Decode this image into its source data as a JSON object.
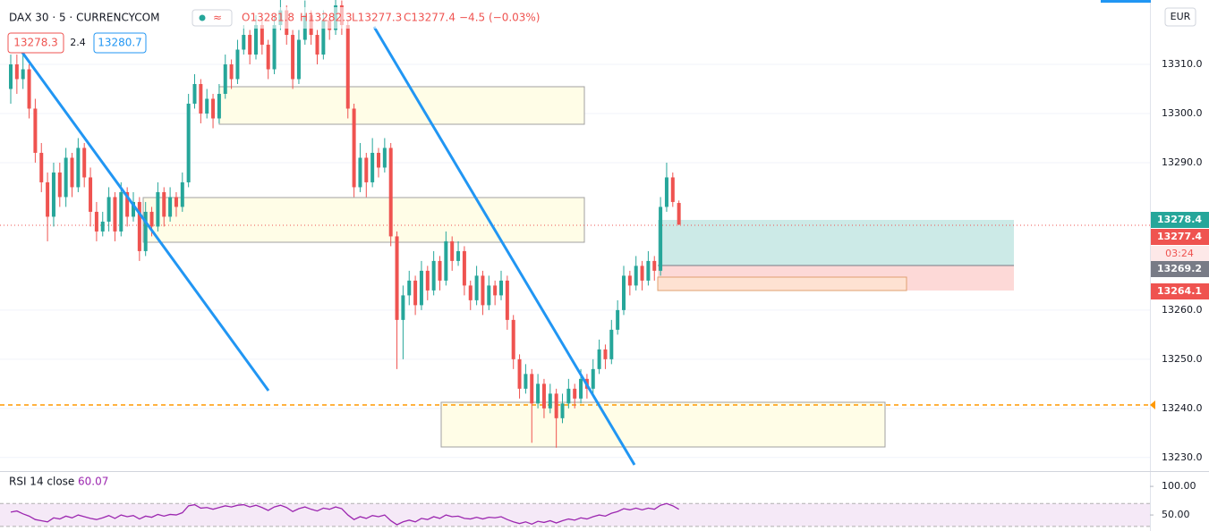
{
  "chart_data": {
    "type": "candlestick",
    "legend": {
      "symbol": "DAX 30 · 5 · CURRENCYCOM",
      "ohlc": [
        "O13281.8",
        "H13282.3",
        "L13277.3",
        "C13277.4"
      ],
      "change": "−4.5 (−0.03%)"
    },
    "inputs": [
      "13278.3",
      "2.4",
      "13280.7"
    ],
    "currency": "EUR",
    "axis_labels": [
      "13278.4",
      "13277.4",
      "03:24",
      "13269.2",
      "13264.1"
    ],
    "ylim": [
      13227.6,
      13323.1
    ],
    "yticks": [
      {
        "value": 13230,
        "label": "13230.0"
      },
      {
        "value": 13240,
        "label": "13240.0"
      },
      {
        "value": 13250,
        "label": "13250.0"
      },
      {
        "value": 13260,
        "label": "13260.0"
      },
      {
        "value": 13290,
        "label": "13290.0"
      },
      {
        "value": 13300,
        "label": "13300.0"
      },
      {
        "value": 13310,
        "label": "13310.0"
      }
    ],
    "up_color": "#26a69a",
    "down_color": "#ef5350",
    "candles": [
      [
        13305,
        13312,
        13302,
        13310
      ],
      [
        13310,
        13312,
        13304,
        13307
      ],
      [
        13307,
        13313,
        13305,
        13309
      ],
      [
        13309,
        13310,
        13299,
        13301
      ],
      [
        13301,
        13303,
        13290,
        13292
      ],
      [
        13292,
        13294,
        13284,
        13286
      ],
      [
        13286,
        13288,
        13274,
        13279
      ],
      [
        13279,
        13290,
        13277,
        13288
      ],
      [
        13288,
        13290,
        13281,
        13283
      ],
      [
        13283,
        13293,
        13281,
        13291
      ],
      [
        13291,
        13292,
        13283,
        13285
      ],
      [
        13285,
        13295,
        13284,
        13293
      ],
      [
        13293,
        13294,
        13285,
        13287
      ],
      [
        13287,
        13289,
        13277,
        13280
      ],
      [
        13280,
        13282,
        13274,
        13276
      ],
      [
        13276,
        13280,
        13275,
        13278
      ],
      [
        13278,
        13285,
        13276,
        13283
      ],
      [
        13283,
        13284,
        13274,
        13276
      ],
      [
        13276,
        13286,
        13275,
        13284
      ],
      [
        13284,
        13285,
        13277,
        13279
      ],
      [
        13279,
        13284,
        13278,
        13282
      ],
      [
        13282,
        13283,
        13270,
        13272
      ],
      [
        13272,
        13282,
        13271,
        13280
      ],
      [
        13280,
        13281,
        13275,
        13277
      ],
      [
        13277,
        13286,
        13276,
        13284
      ],
      [
        13284,
        13285,
        13277,
        13279
      ],
      [
        13279,
        13285,
        13278,
        13283
      ],
      [
        13283,
        13284,
        13279,
        13281
      ],
      [
        13281,
        13288,
        13280,
        13286
      ],
      [
        13286,
        13304,
        13285,
        13302
      ],
      [
        13302,
        13308,
        13301,
        13306
      ],
      [
        13306,
        13307,
        13298,
        13300
      ],
      [
        13300,
        13305,
        13299,
        13303
      ],
      [
        13303,
        13304,
        13297,
        13299
      ],
      [
        13299,
        13306,
        13298,
        13304
      ],
      [
        13304,
        13312,
        13303,
        13310
      ],
      [
        13310,
        13311,
        13305,
        13307
      ],
      [
        13307,
        13315,
        13306,
        13313
      ],
      [
        13313,
        13318,
        13312,
        13316
      ],
      [
        13316,
        13317,
        13310,
        13312
      ],
      [
        13312,
        13320,
        13311,
        13318
      ],
      [
        13318,
        13319,
        13312,
        13314
      ],
      [
        13314,
        13315,
        13307,
        13309
      ],
      [
        13309,
        13320,
        13308,
        13318
      ],
      [
        13318,
        13324,
        13317,
        13321
      ],
      [
        13321,
        13322,
        13314,
        13316
      ],
      [
        13316,
        13317,
        13305,
        13307
      ],
      [
        13307,
        13317,
        13306,
        13315
      ],
      [
        13315,
        13323,
        13314,
        13320
      ],
      [
        13320,
        13321,
        13314,
        13316
      ],
      [
        13316,
        13317,
        13310,
        13312
      ],
      [
        13312,
        13321,
        13311,
        13319
      ],
      [
        13319,
        13320,
        13315,
        13317
      ],
      [
        13317,
        13324,
        13316,
        13322
      ],
      [
        13322,
        13323,
        13316,
        13318
      ],
      [
        13318,
        13319,
        13299,
        13301
      ],
      [
        13301,
        13302,
        13283,
        13285
      ],
      [
        13285,
        13294,
        13284,
        13291
      ],
      [
        13291,
        13292,
        13283,
        13286
      ],
      [
        13286,
        13295,
        13285,
        13292
      ],
      [
        13292,
        13293,
        13287,
        13289
      ],
      [
        13289,
        13295,
        13288,
        13293
      ],
      [
        13293,
        13294,
        13273,
        13275
      ],
      [
        13275,
        13276,
        13248,
        13258
      ],
      [
        13258,
        13265,
        13250,
        13263
      ],
      [
        13263,
        13268,
        13261,
        13266
      ],
      [
        13266,
        13267,
        13259,
        13261
      ],
      [
        13261,
        13270,
        13260,
        13268
      ],
      [
        13268,
        13269,
        13262,
        13264
      ],
      [
        13264,
        13272,
        13263,
        13270
      ],
      [
        13270,
        13271,
        13264,
        13266
      ],
      [
        13266,
        13276,
        13265,
        13274
      ],
      [
        13274,
        13275,
        13268,
        13270
      ],
      [
        13270,
        13274,
        13269,
        13272
      ],
      [
        13272,
        13273,
        13263,
        13265
      ],
      [
        13265,
        13266,
        13260,
        13262
      ],
      [
        13262,
        13269,
        13261,
        13267
      ],
      [
        13267,
        13268,
        13259,
        13261
      ],
      [
        13261,
        13267,
        13260,
        13265
      ],
      [
        13265,
        13266,
        13261,
        13263
      ],
      [
        13263,
        13268,
        13262,
        13266
      ],
      [
        13266,
        13267,
        13256,
        13258
      ],
      [
        13258,
        13259,
        13248,
        13250
      ],
      [
        13250,
        13251,
        13242,
        13244
      ],
      [
        13244,
        13249,
        13243,
        13247
      ],
      [
        13247,
        13248,
        13233,
        13241
      ],
      [
        13241,
        13247,
        13240,
        13245
      ],
      [
        13245,
        13246,
        13238,
        13240
      ],
      [
        13240,
        13245,
        13239,
        13243
      ],
      [
        13243,
        13244,
        13232,
        13238
      ],
      [
        13238,
        13243,
        13237,
        13241
      ],
      [
        13241,
        13246,
        13240,
        13244
      ],
      [
        13244,
        13245,
        13240,
        13242
      ],
      [
        13242,
        13248,
        13241,
        13246
      ],
      [
        13246,
        13247,
        13242,
        13244
      ],
      [
        13244,
        13250,
        13243,
        13248
      ],
      [
        13248,
        13254,
        13247,
        13252
      ],
      [
        13252,
        13253,
        13248,
        13250
      ],
      [
        13250,
        13258,
        13249,
        13256
      ],
      [
        13256,
        13262,
        13255,
        13260
      ],
      [
        13260,
        13269,
        13259,
        13267
      ],
      [
        13267,
        13268,
        13263,
        13265
      ],
      [
        13265,
        13271,
        13264,
        13269
      ],
      [
        13269,
        13270,
        13264,
        13266
      ],
      [
        13266,
        13272,
        13265,
        13270
      ],
      [
        13270,
        13271,
        13266,
        13268
      ],
      [
        13268,
        13283,
        13267,
        13281
      ],
      [
        13281,
        13290,
        13280,
        13287
      ],
      [
        13287,
        13288,
        13281,
        13282
      ],
      [
        13281.8,
        13282.3,
        13277.3,
        13277.4
      ]
    ],
    "rsi": {
      "name": "RSI 14 close",
      "value_label": "60.07",
      "color": "#9c27b0",
      "ylim": [
        22,
        122
      ],
      "band": [
        30,
        70
      ],
      "yticks": [
        {
          "value": 100,
          "label": "100.00"
        },
        {
          "value": 50,
          "label": "50.00"
        }
      ],
      "values": [
        55,
        57,
        52,
        48,
        42,
        40,
        38,
        45,
        43,
        48,
        45,
        50,
        47,
        44,
        42,
        45,
        49,
        44,
        50,
        47,
        49,
        43,
        48,
        46,
        51,
        48,
        51,
        50,
        54,
        66,
        68,
        62,
        63,
        60,
        63,
        66,
        64,
        67,
        68,
        64,
        67,
        63,
        58,
        64,
        67,
        63,
        56,
        61,
        64,
        60,
        57,
        62,
        60,
        64,
        61,
        50,
        42,
        47,
        44,
        49,
        47,
        50,
        40,
        33,
        38,
        41,
        38,
        44,
        42,
        47,
        44,
        50,
        47,
        48,
        44,
        43,
        46,
        43,
        46,
        45,
        47,
        42,
        38,
        35,
        38,
        34,
        39,
        37,
        40,
        36,
        40,
        43,
        41,
        45,
        43,
        47,
        50,
        48,
        53,
        56,
        61,
        59,
        62,
        59,
        62,
        60,
        67,
        70,
        66,
        60.07
      ]
    }
  }
}
